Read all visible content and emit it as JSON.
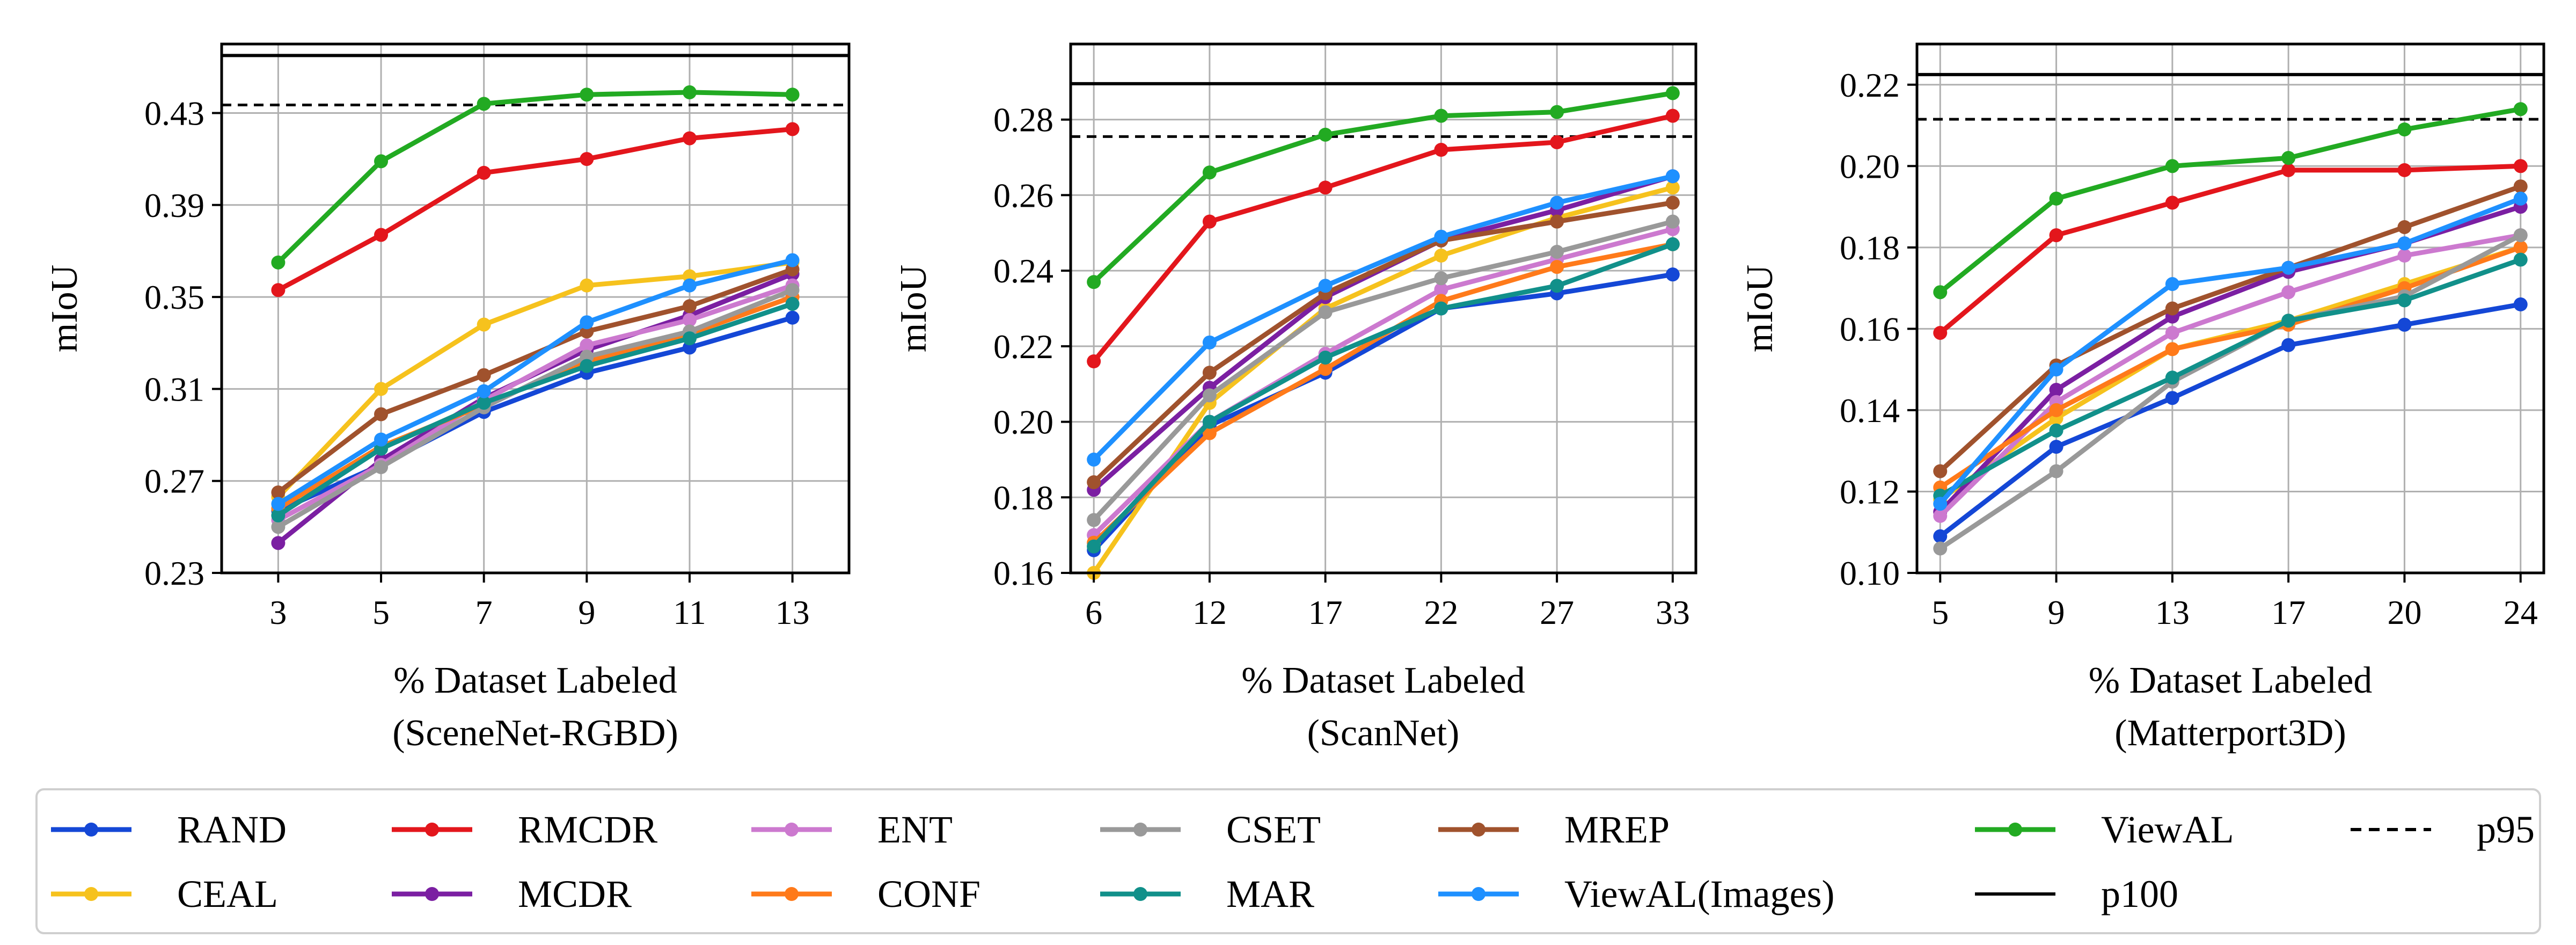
{
  "colors": {
    "RAND": "#1447d6",
    "CEAL": "#f6c21d",
    "RMCDR": "#e3161c",
    "MCDR": "#7b1fa2",
    "ENT": "#cc79cf",
    "CONF": "#ff7a1a",
    "CSET": "#999999",
    "MAR": "#11908a",
    "MREP": "#a0522d",
    "ViewAL(Images)": "#1e90ff",
    "ViewAL": "#22aa22",
    "p100": "#000000",
    "p95": "#000000"
  },
  "legend": {
    "entries": [
      {
        "label": "RAND",
        "style": "line-marker"
      },
      {
        "label": "CEAL",
        "style": "line-marker"
      },
      {
        "label": "RMCDR",
        "style": "line-marker"
      },
      {
        "label": "MCDR",
        "style": "line-marker"
      },
      {
        "label": "ENT",
        "style": "line-marker"
      },
      {
        "label": "CONF",
        "style": "line-marker"
      },
      {
        "label": "CSET",
        "style": "line-marker"
      },
      {
        "label": "MAR",
        "style": "line-marker"
      },
      {
        "label": "MREP",
        "style": "line-marker"
      },
      {
        "label": "ViewAL(Images)",
        "style": "line-marker"
      },
      {
        "label": "ViewAL",
        "style": "line-marker"
      },
      {
        "label": "p100",
        "style": "solid"
      },
      {
        "label": "p95",
        "style": "dashed"
      }
    ]
  },
  "chart_data": [
    {
      "type": "line",
      "xlabel": "% Dataset Labeled",
      "xlabel2": "(SceneNet-RGBD)",
      "ylabel": "mIoU",
      "grid": true,
      "x": [
        3,
        5,
        7,
        9,
        11,
        13
      ],
      "xticks": [
        "3",
        "5",
        "7",
        "9",
        "11",
        "13"
      ],
      "yticks": [
        "0.23",
        "0.27",
        "0.31",
        "0.35",
        "0.39",
        "0.43"
      ],
      "ylim": [
        0.23,
        0.46
      ],
      "p100": 0.455,
      "p95": 0.4335,
      "series": [
        {
          "name": "RAND",
          "values": [
            0.257,
            0.277,
            0.3,
            0.317,
            0.328,
            0.341
          ]
        },
        {
          "name": "CEAL",
          "values": [
            0.263,
            0.31,
            0.338,
            0.355,
            0.359,
            0.365
          ]
        },
        {
          "name": "RMCDR",
          "values": [
            0.353,
            0.377,
            0.404,
            0.41,
            0.419,
            0.423
          ]
        },
        {
          "name": "MCDR",
          "values": [
            0.243,
            0.279,
            0.306,
            0.327,
            0.342,
            0.36
          ]
        },
        {
          "name": "ENT",
          "values": [
            0.253,
            0.277,
            0.305,
            0.329,
            0.34,
            0.355
          ]
        },
        {
          "name": "CONF",
          "values": [
            0.258,
            0.285,
            0.303,
            0.322,
            0.334,
            0.35
          ]
        },
        {
          "name": "CSET",
          "values": [
            0.25,
            0.276,
            0.302,
            0.324,
            0.335,
            0.353
          ]
        },
        {
          "name": "MAR",
          "values": [
            0.255,
            0.284,
            0.304,
            0.32,
            0.332,
            0.347
          ]
        },
        {
          "name": "MREP",
          "values": [
            0.265,
            0.299,
            0.316,
            0.335,
            0.346,
            0.362
          ]
        },
        {
          "name": "ViewAL(Images)",
          "values": [
            0.26,
            0.288,
            0.309,
            0.339,
            0.355,
            0.366
          ]
        },
        {
          "name": "ViewAL",
          "values": [
            0.365,
            0.409,
            0.434,
            0.438,
            0.439,
            0.438
          ]
        }
      ]
    },
    {
      "type": "line",
      "xlabel": "% Dataset Labeled",
      "xlabel2": "(ScanNet)",
      "ylabel": "mIoU",
      "grid": true,
      "x": [
        6,
        12,
        17,
        22,
        27,
        33
      ],
      "xticks": [
        "6",
        "12",
        "17",
        "22",
        "27",
        "33"
      ],
      "yticks": [
        "0.16",
        "0.18",
        "0.20",
        "0.22",
        "0.24",
        "0.26",
        "0.28"
      ],
      "ylim": [
        0.16,
        0.3
      ],
      "p100": 0.2895,
      "p95": 0.2755,
      "series": [
        {
          "name": "RAND",
          "values": [
            0.166,
            0.199,
            0.213,
            0.23,
            0.234,
            0.239
          ]
        },
        {
          "name": "CEAL",
          "values": [
            0.16,
            0.205,
            0.23,
            0.244,
            0.254,
            0.262
          ]
        },
        {
          "name": "RMCDR",
          "values": [
            0.216,
            0.253,
            0.262,
            0.272,
            0.274,
            0.281
          ]
        },
        {
          "name": "MCDR",
          "values": [
            0.182,
            0.209,
            0.233,
            0.248,
            0.256,
            0.265
          ]
        },
        {
          "name": "ENT",
          "values": [
            0.17,
            0.2,
            0.218,
            0.235,
            0.243,
            0.251
          ]
        },
        {
          "name": "CONF",
          "values": [
            0.168,
            0.197,
            0.214,
            0.232,
            0.241,
            0.247
          ]
        },
        {
          "name": "CSET",
          "values": [
            0.174,
            0.207,
            0.229,
            0.238,
            0.245,
            0.253
          ]
        },
        {
          "name": "MAR",
          "values": [
            0.167,
            0.2,
            0.217,
            0.23,
            0.236,
            0.247
          ]
        },
        {
          "name": "MREP",
          "values": [
            0.184,
            0.213,
            0.234,
            0.248,
            0.253,
            0.258
          ]
        },
        {
          "name": "ViewAL(Images)",
          "values": [
            0.19,
            0.221,
            0.236,
            0.249,
            0.258,
            0.265
          ]
        },
        {
          "name": "ViewAL",
          "values": [
            0.237,
            0.266,
            0.276,
            0.281,
            0.282,
            0.287
          ]
        }
      ]
    },
    {
      "type": "line",
      "xlabel": "% Dataset Labeled",
      "xlabel2": "(Matterport3D)",
      "ylabel": "mIoU",
      "grid": true,
      "x": [
        5,
        9,
        13,
        17,
        20,
        24
      ],
      "xticks": [
        "5",
        "9",
        "13",
        "17",
        "20",
        "24"
      ],
      "yticks": [
        "0.10",
        "0.12",
        "0.14",
        "0.16",
        "0.18",
        "0.20",
        "0.22"
      ],
      "ylim": [
        0.1,
        0.23
      ],
      "p100": 0.2225,
      "p95": 0.2115,
      "series": [
        {
          "name": "RAND",
          "values": [
            0.109,
            0.131,
            0.143,
            0.156,
            0.161,
            0.166
          ]
        },
        {
          "name": "CEAL",
          "values": [
            0.118,
            0.138,
            0.155,
            0.162,
            0.171,
            0.18
          ]
        },
        {
          "name": "RMCDR",
          "values": [
            0.159,
            0.183,
            0.191,
            0.199,
            0.199,
            0.2
          ]
        },
        {
          "name": "MCDR",
          "values": [
            0.115,
            0.145,
            0.163,
            0.174,
            0.181,
            0.19
          ]
        },
        {
          "name": "ENT",
          "values": [
            0.114,
            0.142,
            0.159,
            0.169,
            0.178,
            0.183
          ]
        },
        {
          "name": "CONF",
          "values": [
            0.121,
            0.14,
            0.155,
            0.161,
            0.17,
            0.18
          ]
        },
        {
          "name": "CSET",
          "values": [
            0.106,
            0.125,
            0.147,
            0.162,
            0.168,
            0.183
          ]
        },
        {
          "name": "MAR",
          "values": [
            0.119,
            0.135,
            0.148,
            0.162,
            0.167,
            0.177
          ]
        },
        {
          "name": "MREP",
          "values": [
            0.125,
            0.151,
            0.165,
            0.175,
            0.185,
            0.195
          ]
        },
        {
          "name": "ViewAL(Images)",
          "values": [
            0.117,
            0.15,
            0.171,
            0.175,
            0.181,
            0.192
          ]
        },
        {
          "name": "ViewAL",
          "values": [
            0.169,
            0.192,
            0.2,
            0.202,
            0.209,
            0.214
          ]
        }
      ]
    }
  ]
}
